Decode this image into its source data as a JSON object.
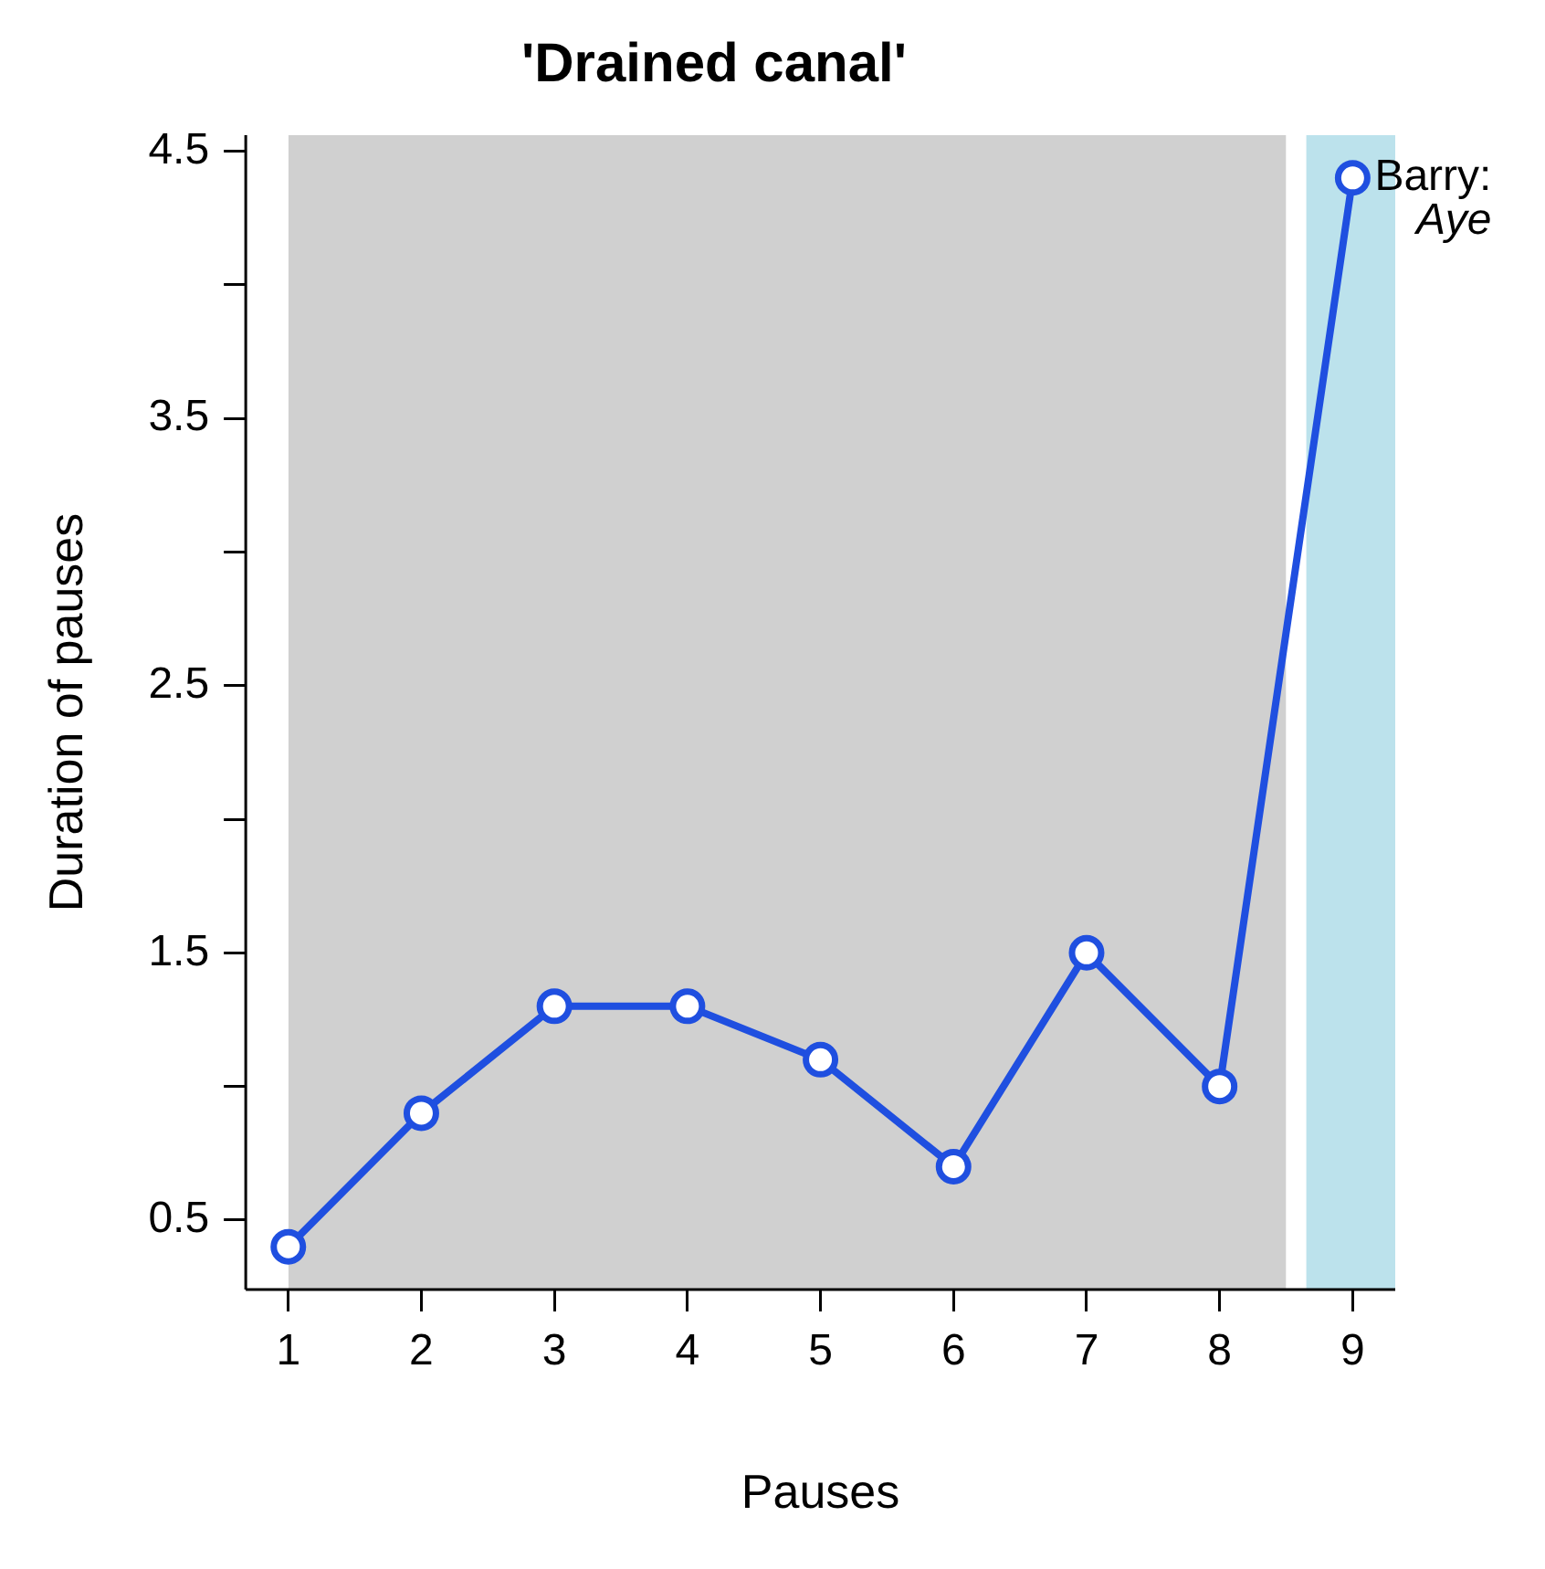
{
  "chart_data": {
    "type": "line",
    "title": "'Drained canal'",
    "xlabel": "Pauses",
    "ylabel": "Duration of pauses",
    "x": [
      1,
      2,
      3,
      4,
      5,
      6,
      7,
      8,
      9
    ],
    "series": [
      {
        "color": "#1f4fe0",
        "values": [
          0.4,
          0.9,
          1.3,
          1.3,
          1.1,
          0.7,
          1.5,
          1.0,
          4.4
        ]
      }
    ],
    "xlim": [
      0.68,
      9.32
    ],
    "ylim": [
      0.24,
      4.56
    ],
    "xticks": [
      1,
      2,
      3,
      4,
      5,
      6,
      7,
      8,
      9
    ],
    "yticks": [
      0.5,
      {
        "value": 1,
        "label": null
      },
      1.5,
      {
        "value": 2,
        "label": null
      },
      2.5,
      {
        "value": 3,
        "label": null
      },
      3.5,
      {
        "value": 4,
        "label": null
      },
      4.5
    ],
    "bands": [
      {
        "axis": "x",
        "from": 1,
        "to": 8.5,
        "color": "#b0b0b0"
      },
      {
        "axis": "x",
        "from": 8.65,
        "to": 9.32,
        "color": "#8fcfe0"
      }
    ],
    "annotations": [
      {
        "text": "Barry:\nAye",
        "x": 9,
        "y": 4.4
      }
    ],
    "marker": "circle",
    "line_style": "solid",
    "grid": false,
    "legend": false
  }
}
